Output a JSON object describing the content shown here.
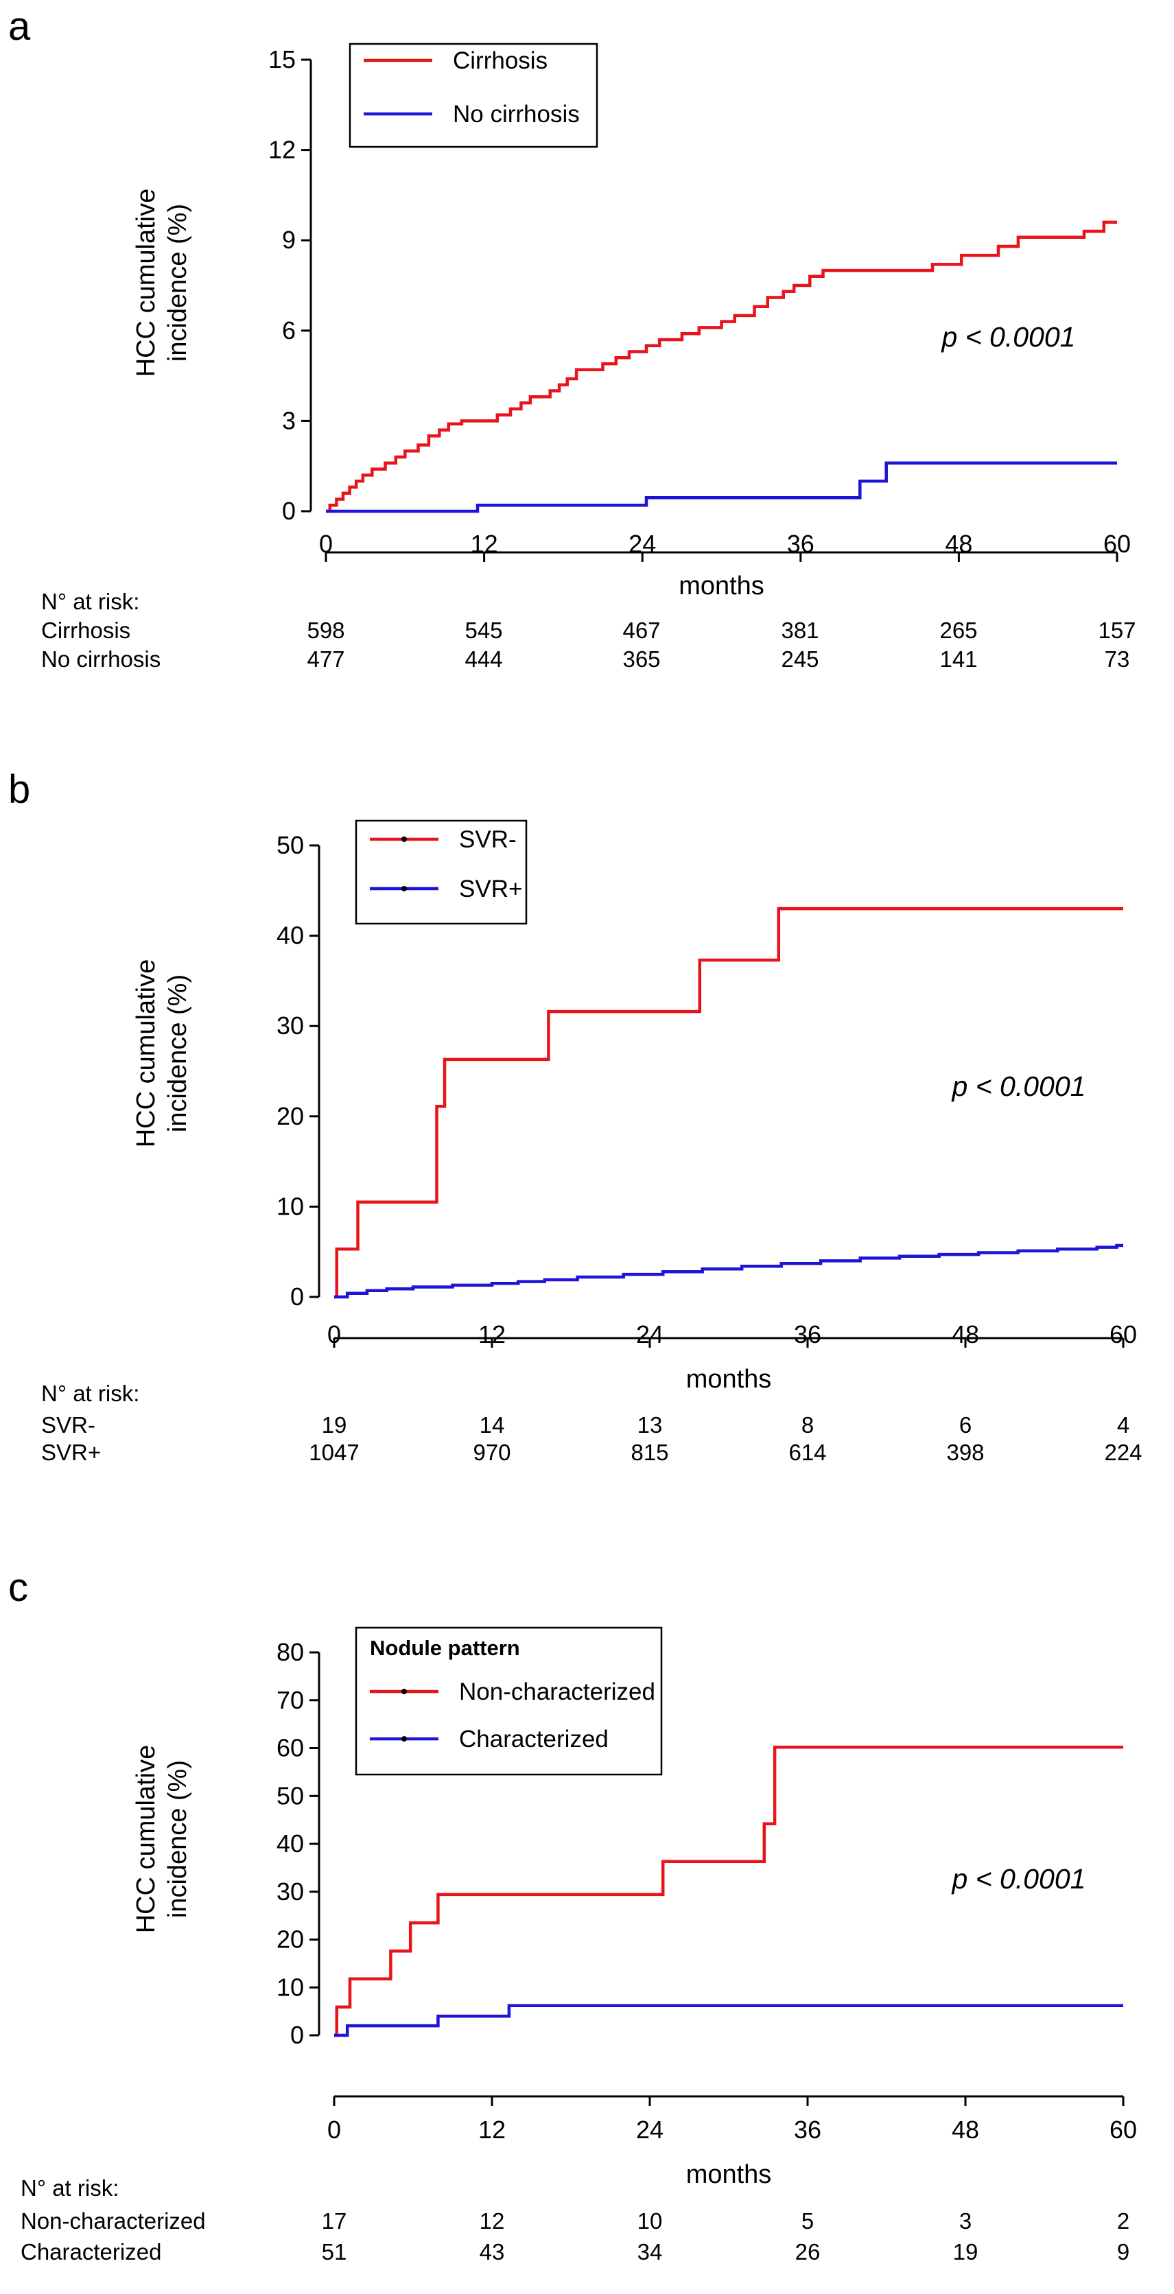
{
  "chart_data": [
    {
      "type": "line",
      "panel_label": "a",
      "title": "",
      "xlabel": "months",
      "ylabel": "HCC cumulative incidence (%)",
      "ylabel_lines": [
        "HCC cumulative",
        "incidence (%)"
      ],
      "xlim": [
        0,
        60
      ],
      "ylim": [
        0,
        15
      ],
      "x_ticks": [
        0,
        12,
        24,
        36,
        48,
        60
      ],
      "y_ticks": [
        0,
        3,
        6,
        9,
        12,
        15
      ],
      "grid": false,
      "legend": {
        "title": "",
        "position": "top-left",
        "entries": [
          "Cirrhosis",
          "No cirrhosis"
        ]
      },
      "annotation": "p < 0.0001",
      "series": [
        {
          "name": "Cirrhosis",
          "color": "#e8141c",
          "step_points": [
            [
              0,
              0
            ],
            [
              0.3,
              0.2
            ],
            [
              0.8,
              0.4
            ],
            [
              1.3,
              0.6
            ],
            [
              1.8,
              0.8
            ],
            [
              2.3,
              1.0
            ],
            [
              2.8,
              1.2
            ],
            [
              3.5,
              1.4
            ],
            [
              4.5,
              1.6
            ],
            [
              5.3,
              1.8
            ],
            [
              6.0,
              2.0
            ],
            [
              7.0,
              2.2
            ],
            [
              7.8,
              2.5
            ],
            [
              8.6,
              2.7
            ],
            [
              9.3,
              2.9
            ],
            [
              10.3,
              3.0
            ],
            [
              13.0,
              3.2
            ],
            [
              14.0,
              3.4
            ],
            [
              14.8,
              3.6
            ],
            [
              15.5,
              3.8
            ],
            [
              17.0,
              4.0
            ],
            [
              17.7,
              4.2
            ],
            [
              18.3,
              4.4
            ],
            [
              19.0,
              4.7
            ],
            [
              21.0,
              4.9
            ],
            [
              22.0,
              5.1
            ],
            [
              23.0,
              5.3
            ],
            [
              24.3,
              5.5
            ],
            [
              25.3,
              5.7
            ],
            [
              27.0,
              5.9
            ],
            [
              28.3,
              6.1
            ],
            [
              30.0,
              6.3
            ],
            [
              31.0,
              6.5
            ],
            [
              32.5,
              6.8
            ],
            [
              33.5,
              7.1
            ],
            [
              34.7,
              7.3
            ],
            [
              35.5,
              7.5
            ],
            [
              36.7,
              7.8
            ],
            [
              37.7,
              8.0
            ],
            [
              46.0,
              8.2
            ],
            [
              48.2,
              8.5
            ],
            [
              51.0,
              8.8
            ],
            [
              52.5,
              9.1
            ],
            [
              57.5,
              9.3
            ],
            [
              59.0,
              9.6
            ],
            [
              60,
              9.6
            ]
          ],
          "values": [
            0,
            3.0,
            5.5,
            7.8,
            8.5,
            9.6
          ]
        },
        {
          "name": "No cirrhosis",
          "color": "#1f14d6",
          "step_points": [
            [
              0,
              0
            ],
            [
              11.5,
              0.2
            ],
            [
              24.3,
              0.45
            ],
            [
              40.5,
              1.0
            ],
            [
              42.5,
              1.6
            ],
            [
              60,
              1.6
            ]
          ],
          "values": [
            0,
            0.2,
            0.45,
            0.45,
            1.6,
            1.6
          ]
        }
      ],
      "at_risk": {
        "header": "N° at risk:",
        "rows": [
          {
            "label": "Cirrhosis",
            "values": [
              "598",
              "545",
              "467",
              "381",
              "265",
              "157"
            ]
          },
          {
            "label": "No cirrhosis",
            "values": [
              "477",
              "444",
              "365",
              "245",
              "141",
              "73"
            ]
          }
        ]
      }
    },
    {
      "type": "line",
      "panel_label": "b",
      "title": "",
      "xlabel": "months",
      "ylabel": "HCC cumulative incidence (%)",
      "ylabel_lines": [
        "HCC cumulative",
        "incidence (%)"
      ],
      "xlim": [
        0,
        60
      ],
      "ylim": [
        0,
        50
      ],
      "x_ticks": [
        0,
        12,
        24,
        36,
        48,
        60
      ],
      "y_ticks": [
        0,
        10,
        20,
        30,
        40,
        50
      ],
      "grid": false,
      "legend": {
        "title": "",
        "position": "top-left",
        "entries": [
          "SVR-",
          "SVR+"
        ]
      },
      "annotation": "p < 0.0001",
      "series": [
        {
          "name": "SVR-",
          "color": "#e8141c",
          "step_points": [
            [
              0,
              0
            ],
            [
              0.2,
              5.3
            ],
            [
              1.8,
              10.5
            ],
            [
              7.8,
              21.1
            ],
            [
              8.4,
              26.3
            ],
            [
              16.3,
              31.6
            ],
            [
              27.8,
              37.3
            ],
            [
              33.8,
              43.0
            ],
            [
              60,
              43.0
            ]
          ],
          "values": [
            0,
            26.3,
            31.6,
            43.0,
            43.0,
            43.0
          ]
        },
        {
          "name": "SVR+",
          "color": "#1f14d6",
          "step_points": [
            [
              0,
              0
            ],
            [
              1.0,
              0.4
            ],
            [
              2.5,
              0.7
            ],
            [
              4.0,
              0.9
            ],
            [
              6.0,
              1.1
            ],
            [
              9.0,
              1.3
            ],
            [
              12.0,
              1.5
            ],
            [
              14.0,
              1.7
            ],
            [
              16.0,
              1.9
            ],
            [
              18.5,
              2.2
            ],
            [
              22.0,
              2.5
            ],
            [
              25.0,
              2.8
            ],
            [
              28.0,
              3.1
            ],
            [
              31.0,
              3.4
            ],
            [
              34.0,
              3.7
            ],
            [
              37.0,
              4.0
            ],
            [
              40.0,
              4.3
            ],
            [
              43.0,
              4.5
            ],
            [
              46.0,
              4.7
            ],
            [
              49.0,
              4.9
            ],
            [
              52.0,
              5.1
            ],
            [
              55.0,
              5.3
            ],
            [
              58.0,
              5.5
            ],
            [
              59.5,
              5.7
            ],
            [
              60,
              5.7
            ]
          ],
          "values": [
            0,
            1.5,
            2.8,
            3.9,
            4.8,
            5.7
          ]
        }
      ],
      "at_risk": {
        "header": "N° at risk:",
        "rows": [
          {
            "label": "SVR-",
            "values": [
              "19",
              "14",
              "13",
              "8",
              "6",
              "4"
            ]
          },
          {
            "label": "SVR+",
            "values": [
              "1047",
              "970",
              "815",
              "614",
              "398",
              "224"
            ]
          }
        ]
      }
    },
    {
      "type": "line",
      "panel_label": "c",
      "title": "",
      "xlabel": "months",
      "ylabel": "HCC cumulative incidence (%)",
      "ylabel_lines": [
        "HCC cumulative",
        "incidence (%)"
      ],
      "xlim": [
        0,
        60
      ],
      "ylim": [
        0,
        80
      ],
      "x_ticks": [
        0,
        12,
        24,
        36,
        48,
        60
      ],
      "y_ticks": [
        0,
        10,
        20,
        30,
        40,
        50,
        60,
        70,
        80
      ],
      "grid": false,
      "legend": {
        "title": "Nodule pattern",
        "position": "top-left",
        "entries": [
          "Non-characterized",
          "Characterized"
        ]
      },
      "annotation": "p < 0.0001",
      "series": [
        {
          "name": "Non-characterized",
          "color": "#e8141c",
          "step_points": [
            [
              0,
              0
            ],
            [
              0.2,
              5.9
            ],
            [
              1.2,
              11.8
            ],
            [
              4.3,
              17.6
            ],
            [
              5.8,
              23.5
            ],
            [
              7.9,
              29.4
            ],
            [
              25.0,
              36.3
            ],
            [
              32.7,
              44.2
            ],
            [
              33.5,
              60.2
            ],
            [
              60,
              60.2
            ]
          ],
          "values": [
            0,
            29.4,
            29.4,
            60.2,
            60.2,
            60.2
          ]
        },
        {
          "name": "Characterized",
          "color": "#1f14d6",
          "step_points": [
            [
              0,
              0
            ],
            [
              1.0,
              2.0
            ],
            [
              7.9,
              4.0
            ],
            [
              13.3,
              6.2
            ],
            [
              60,
              6.2
            ]
          ],
          "values": [
            0,
            4.0,
            6.2,
            6.2,
            6.2,
            6.2
          ]
        }
      ],
      "at_risk": {
        "header": "N° at risk:",
        "rows": [
          {
            "label": "Non-characterized",
            "values": [
              "17",
              "12",
              "10",
              "5",
              "3",
              "2"
            ]
          },
          {
            "label": "Characterized",
            "values": [
              "51",
              "43",
              "34",
              "26",
              "19",
              "9"
            ]
          }
        ]
      }
    }
  ]
}
